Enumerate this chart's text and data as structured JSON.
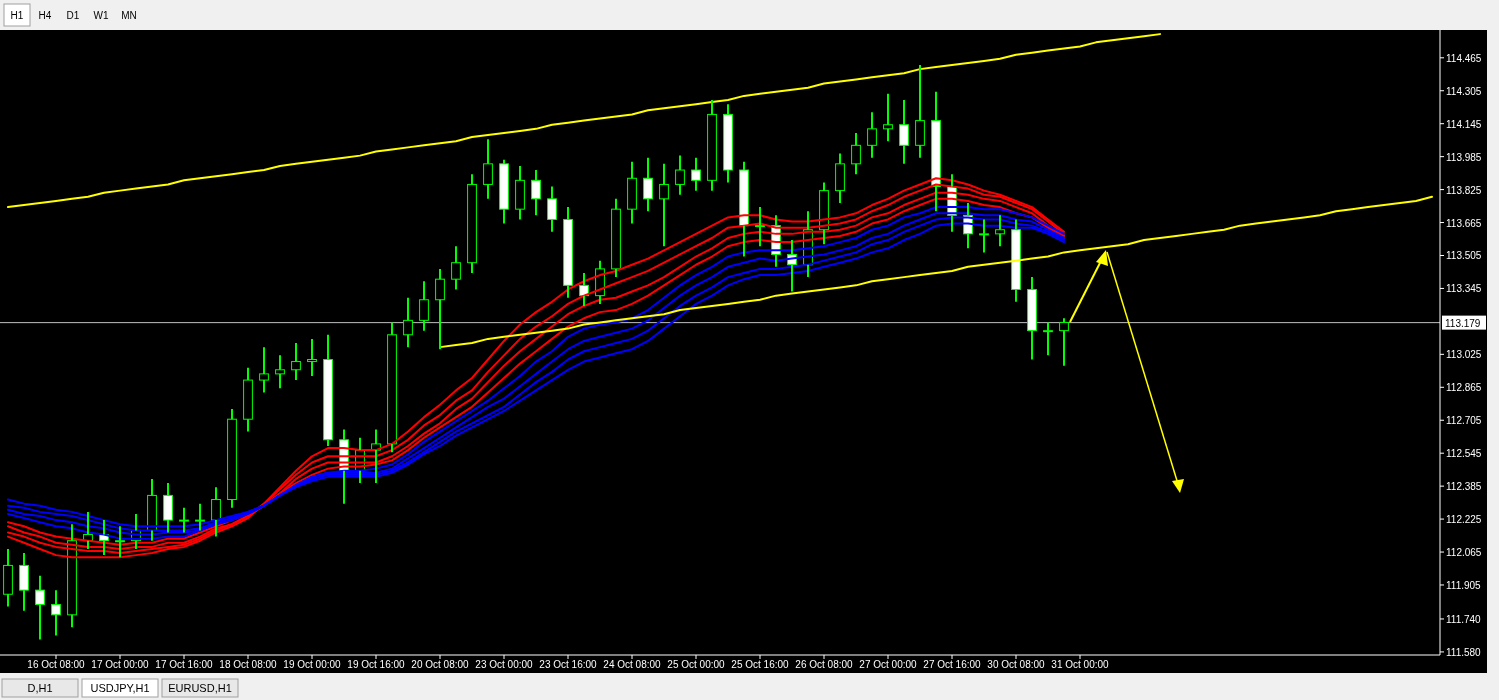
{
  "chart_data": {
    "type": "candlestick",
    "color": "#00ff00",
    "categories": [
      null,
      null,
      null,
      "16 Oct 08:00",
      null,
      null,
      null,
      "17 Oct 00:00",
      null,
      null,
      null,
      "17 Oct 16:00",
      null,
      null,
      null,
      "18 Oct 08:00",
      null,
      null,
      null,
      "19 Oct 00:00",
      null,
      null,
      null,
      "19 Oct 16:00",
      null,
      null,
      null,
      "20 Oct 08:00",
      null,
      null,
      null,
      "23 Oct 00:00",
      null,
      null,
      null,
      "23 Oct 16:00",
      null,
      null,
      null,
      "24 Oct 08:00",
      null,
      null,
      null,
      "25 Oct 00:00",
      null,
      null,
      null,
      "25 Oct 16:00",
      null,
      null,
      null,
      "26 Oct 08:00",
      null,
      null,
      null,
      "27 Oct 00:00",
      null,
      null,
      null,
      "27 Oct 16:00",
      null,
      null,
      null,
      "30 Oct 08:00",
      null,
      null,
      null,
      "31 Oct 00:00",
      null,
      null,
      null,
      null,
      null,
      null,
      null,
      null,
      null,
      null,
      null,
      null,
      null,
      null,
      null,
      null,
      null,
      null,
      null,
      null,
      null,
      null
    ],
    "ohlc": [
      [
        111.86,
        112.08,
        111.8,
        112.0
      ],
      [
        112.0,
        112.06,
        111.78,
        111.88
      ],
      [
        111.88,
        111.95,
        111.64,
        111.81
      ],
      [
        111.81,
        111.88,
        111.66,
        111.76
      ],
      [
        111.76,
        112.2,
        111.7,
        112.12
      ],
      [
        112.12,
        112.26,
        112.08,
        112.15
      ],
      [
        112.15,
        112.22,
        112.05,
        112.12
      ],
      [
        112.12,
        112.19,
        112.04,
        112.12
      ],
      [
        112.12,
        112.25,
        112.08,
        112.17
      ],
      [
        112.17,
        112.42,
        112.12,
        112.34
      ],
      [
        112.34,
        112.4,
        112.16,
        112.22
      ],
      [
        112.22,
        112.28,
        112.16,
        112.22
      ],
      [
        112.22,
        112.3,
        112.17,
        112.22
      ],
      [
        112.22,
        112.38,
        112.14,
        112.32
      ],
      [
        112.32,
        112.76,
        112.28,
        112.71
      ],
      [
        112.71,
        112.96,
        112.65,
        112.9
      ],
      [
        112.9,
        113.06,
        112.84,
        112.93
      ],
      [
        112.93,
        113.02,
        112.86,
        112.95
      ],
      [
        112.95,
        113.08,
        112.9,
        112.99
      ],
      [
        112.99,
        113.1,
        112.92,
        113.0
      ],
      [
        113.0,
        113.12,
        112.58,
        112.61
      ],
      [
        112.61,
        112.66,
        112.3,
        112.46
      ],
      [
        112.46,
        112.62,
        112.4,
        112.56
      ],
      [
        112.56,
        112.66,
        112.4,
        112.59
      ],
      [
        112.59,
        113.18,
        112.55,
        113.12
      ],
      [
        113.12,
        113.3,
        113.06,
        113.19
      ],
      [
        113.19,
        113.38,
        113.14,
        113.29
      ],
      [
        113.29,
        113.44,
        113.05,
        113.39
      ],
      [
        113.39,
        113.55,
        113.34,
        113.47
      ],
      [
        113.47,
        113.9,
        113.42,
        113.85
      ],
      [
        113.85,
        114.07,
        113.78,
        113.95
      ],
      [
        113.95,
        113.97,
        113.66,
        113.73
      ],
      [
        113.73,
        113.94,
        113.68,
        113.87
      ],
      [
        113.87,
        113.92,
        113.7,
        113.78
      ],
      [
        113.78,
        113.84,
        113.62,
        113.68
      ],
      [
        113.68,
        113.74,
        113.3,
        113.36
      ],
      [
        113.36,
        113.42,
        113.26,
        113.31
      ],
      [
        113.31,
        113.48,
        113.27,
        113.44
      ],
      [
        113.44,
        113.78,
        113.4,
        113.73
      ],
      [
        113.73,
        113.96,
        113.66,
        113.88
      ],
      [
        113.88,
        113.98,
        113.72,
        113.78
      ],
      [
        113.78,
        113.95,
        113.55,
        113.85
      ],
      [
        113.85,
        113.99,
        113.8,
        113.92
      ],
      [
        113.92,
        113.98,
        113.82,
        113.87
      ],
      [
        113.87,
        114.26,
        113.82,
        114.19
      ],
      [
        114.19,
        114.24,
        113.86,
        113.92
      ],
      [
        113.92,
        113.96,
        113.5,
        113.65
      ],
      [
        113.65,
        113.74,
        113.55,
        113.65
      ],
      [
        113.65,
        113.7,
        113.45,
        113.51
      ],
      [
        113.51,
        113.58,
        113.33,
        113.46
      ],
      [
        113.46,
        113.72,
        113.4,
        113.63
      ],
      [
        113.63,
        113.86,
        113.56,
        113.82
      ],
      [
        113.82,
        114.0,
        113.76,
        113.95
      ],
      [
        113.95,
        114.1,
        113.9,
        114.04
      ],
      [
        114.04,
        114.2,
        113.98,
        114.12
      ],
      [
        114.12,
        114.29,
        114.06,
        114.14
      ],
      [
        114.14,
        114.26,
        113.95,
        114.04
      ],
      [
        114.04,
        114.43,
        113.98,
        114.16
      ],
      [
        114.16,
        114.3,
        113.72,
        113.84
      ],
      [
        113.84,
        113.9,
        113.62,
        113.7
      ],
      [
        113.7,
        113.76,
        113.54,
        113.61
      ],
      [
        113.61,
        113.68,
        113.52,
        113.61
      ],
      [
        113.61,
        113.7,
        113.55,
        113.63
      ],
      [
        113.63,
        113.68,
        113.28,
        113.34
      ],
      [
        113.34,
        113.4,
        113.0,
        113.14
      ],
      [
        113.14,
        113.18,
        113.02,
        113.14
      ],
      [
        113.14,
        113.2,
        112.97,
        113.18
      ],
      null,
      null,
      null,
      null,
      null,
      null,
      null,
      null,
      null,
      null,
      null,
      null,
      null,
      null,
      null,
      null,
      null,
      null,
      null,
      null,
      null,
      null,
      null
    ],
    "series": [
      {
        "type": "line",
        "color": "#ff0000",
        "values": [
          112.14,
          112.11,
          112.08,
          112.05,
          112.04,
          112.04,
          112.04,
          112.04,
          112.05,
          112.06,
          112.08,
          112.09,
          112.12,
          112.16,
          112.19,
          112.23,
          112.3,
          112.38,
          112.46,
          112.53,
          112.57,
          112.57,
          112.56,
          112.56,
          112.59,
          112.65,
          112.72,
          112.78,
          112.85,
          112.91,
          113.0,
          113.09,
          113.17,
          113.23,
          113.28,
          113.34,
          113.38,
          113.41,
          113.43,
          113.46,
          113.49,
          113.53,
          113.57,
          113.61,
          113.65,
          113.69,
          113.7,
          113.7,
          113.68,
          113.67,
          113.67,
          113.68,
          113.69,
          113.71,
          113.75,
          113.78,
          113.82,
          113.85,
          113.88,
          113.87,
          113.85,
          113.82,
          113.8,
          113.77,
          113.74,
          113.68,
          113.62,
          null,
          null,
          null,
          null,
          null,
          null,
          null,
          null,
          null,
          null,
          null,
          null,
          null,
          null,
          null,
          null,
          null,
          null,
          null,
          null,
          null,
          null,
          null
        ]
      },
      {
        "type": "line",
        "color": "#ff0000",
        "values": [
          112.16,
          112.14,
          112.11,
          112.09,
          112.08,
          112.07,
          112.07,
          112.06,
          112.07,
          112.08,
          112.09,
          112.1,
          112.13,
          112.17,
          112.2,
          112.24,
          112.3,
          112.37,
          112.44,
          112.5,
          112.53,
          112.53,
          112.53,
          112.53,
          112.56,
          112.61,
          112.68,
          112.73,
          112.8,
          112.85,
          112.94,
          113.02,
          113.1,
          113.16,
          113.21,
          113.27,
          113.31,
          113.34,
          113.37,
          113.4,
          113.43,
          113.47,
          113.51,
          113.55,
          113.59,
          113.64,
          113.65,
          113.66,
          113.64,
          113.64,
          113.64,
          113.65,
          113.66,
          113.68,
          113.72,
          113.75,
          113.79,
          113.82,
          113.85,
          113.84,
          113.83,
          113.8,
          113.79,
          113.76,
          113.73,
          113.67,
          113.61,
          null,
          null,
          null,
          null,
          null,
          null,
          null,
          null,
          null,
          null,
          null,
          null,
          null,
          null,
          null,
          null,
          null,
          null,
          null,
          null,
          null,
          null,
          null
        ]
      },
      {
        "type": "line",
        "color": "#ff0000",
        "values": [
          112.19,
          112.16,
          112.14,
          112.11,
          112.1,
          112.09,
          112.09,
          112.08,
          112.09,
          112.09,
          112.11,
          112.11,
          112.14,
          112.18,
          112.2,
          112.24,
          112.29,
          112.35,
          112.42,
          112.47,
          112.5,
          112.5,
          112.5,
          112.5,
          112.53,
          112.58,
          112.64,
          112.69,
          112.76,
          112.81,
          112.89,
          112.97,
          113.04,
          113.1,
          113.16,
          113.22,
          113.26,
          113.29,
          113.3,
          113.33,
          113.36,
          113.4,
          113.45,
          113.5,
          113.54,
          113.59,
          113.61,
          113.62,
          113.61,
          113.61,
          113.62,
          113.62,
          113.63,
          113.65,
          113.69,
          113.71,
          113.75,
          113.78,
          113.81,
          113.81,
          113.8,
          113.78,
          113.77,
          113.74,
          113.71,
          113.65,
          113.6,
          null,
          null,
          null,
          null,
          null,
          null,
          null,
          null,
          null,
          null,
          null,
          null,
          null,
          null,
          null,
          null,
          null,
          null,
          null,
          null,
          null,
          null,
          null
        ]
      },
      {
        "type": "line",
        "color": "#ff0000",
        "values": [
          112.21,
          112.19,
          112.16,
          112.14,
          112.13,
          112.12,
          112.11,
          112.1,
          112.11,
          112.11,
          112.13,
          112.13,
          112.16,
          112.19,
          112.22,
          112.25,
          112.29,
          112.35,
          112.4,
          112.44,
          112.47,
          112.48,
          112.48,
          112.49,
          112.51,
          112.56,
          112.62,
          112.67,
          112.72,
          112.77,
          112.84,
          112.91,
          112.98,
          113.04,
          113.1,
          113.16,
          113.2,
          113.23,
          113.24,
          113.27,
          113.31,
          113.36,
          113.41,
          113.46,
          113.5,
          113.55,
          113.57,
          113.58,
          113.57,
          113.57,
          113.58,
          113.59,
          113.6,
          113.62,
          113.66,
          113.68,
          113.72,
          113.75,
          113.78,
          113.78,
          113.77,
          113.75,
          113.74,
          113.71,
          113.69,
          113.64,
          113.59,
          null,
          null,
          null,
          null,
          null,
          null,
          null,
          null,
          null,
          null,
          null,
          null,
          null,
          null,
          null,
          null,
          null,
          null,
          null,
          null,
          null,
          null,
          null
        ]
      },
      {
        "type": "line",
        "color": "#0000ff",
        "values": [
          112.25,
          112.23,
          112.21,
          112.19,
          112.18,
          112.16,
          112.15,
          112.13,
          112.13,
          112.13,
          112.14,
          112.14,
          112.17,
          112.2,
          112.22,
          112.25,
          112.29,
          112.34,
          112.39,
          112.43,
          112.45,
          112.46,
          112.46,
          112.47,
          112.49,
          112.54,
          112.6,
          112.65,
          112.7,
          112.75,
          112.8,
          112.86,
          112.92,
          112.99,
          113.04,
          113.11,
          113.15,
          113.17,
          113.18,
          113.2,
          113.24,
          113.3,
          113.36,
          113.41,
          113.45,
          113.5,
          113.52,
          113.53,
          113.53,
          113.53,
          113.54,
          113.55,
          113.57,
          113.59,
          113.63,
          113.65,
          113.69,
          113.71,
          113.74,
          113.74,
          113.74,
          113.73,
          113.73,
          113.71,
          113.69,
          113.65,
          113.61,
          null,
          null,
          null,
          null,
          null,
          null,
          null,
          null,
          null,
          null,
          null,
          null,
          null,
          null,
          null,
          null,
          null,
          null,
          null,
          null,
          null,
          null,
          null
        ]
      },
      {
        "type": "line",
        "color": "#0000ff",
        "values": [
          112.27,
          112.25,
          112.24,
          112.22,
          112.21,
          112.19,
          112.18,
          112.16,
          112.15,
          112.15,
          112.16,
          112.16,
          112.17,
          112.2,
          112.22,
          112.25,
          112.29,
          112.34,
          112.39,
          112.43,
          112.45,
          112.45,
          112.45,
          112.45,
          112.47,
          112.52,
          112.57,
          112.62,
          112.67,
          112.72,
          112.77,
          112.81,
          112.87,
          112.93,
          112.99,
          113.05,
          113.09,
          113.11,
          113.13,
          113.15,
          113.19,
          113.25,
          113.31,
          113.36,
          113.4,
          113.45,
          113.47,
          113.49,
          113.48,
          113.49,
          113.5,
          113.51,
          113.53,
          113.55,
          113.59,
          113.61,
          113.65,
          113.68,
          113.71,
          113.71,
          113.71,
          113.7,
          113.7,
          113.68,
          113.67,
          113.63,
          113.59,
          null,
          null,
          null,
          null,
          null,
          null,
          null,
          null,
          null,
          null,
          null,
          null,
          null,
          null,
          null,
          null,
          null,
          null,
          null,
          null,
          null,
          null,
          null
        ]
      },
      {
        "type": "line",
        "color": "#0000ff",
        "values": [
          112.29,
          112.28,
          112.26,
          112.25,
          112.24,
          112.22,
          112.2,
          112.18,
          112.17,
          112.17,
          112.17,
          112.17,
          112.18,
          112.21,
          112.23,
          112.26,
          112.29,
          112.34,
          112.38,
          112.42,
          112.44,
          112.44,
          112.44,
          112.44,
          112.46,
          112.5,
          112.55,
          112.6,
          112.65,
          112.69,
          112.73,
          112.77,
          112.83,
          112.89,
          112.94,
          113.0,
          113.04,
          113.06,
          113.08,
          113.1,
          113.14,
          113.2,
          113.26,
          113.31,
          113.35,
          113.4,
          113.42,
          113.44,
          113.44,
          113.45,
          113.46,
          113.48,
          113.5,
          113.52,
          113.56,
          113.58,
          113.62,
          113.65,
          113.68,
          113.69,
          113.69,
          113.68,
          113.68,
          113.66,
          113.65,
          113.62,
          113.58,
          null,
          null,
          null,
          null,
          null,
          null,
          null,
          null,
          null,
          null,
          null,
          null,
          null,
          null,
          null,
          null,
          null,
          null,
          null,
          null,
          null,
          null,
          null
        ]
      },
      {
        "type": "line",
        "color": "#0000ff",
        "values": [
          112.32,
          112.3,
          112.29,
          112.27,
          112.26,
          112.24,
          112.22,
          112.2,
          112.19,
          112.19,
          112.19,
          112.19,
          112.2,
          112.22,
          112.24,
          112.26,
          112.29,
          112.34,
          112.38,
          112.41,
          112.43,
          112.43,
          112.43,
          112.43,
          112.45,
          112.49,
          112.54,
          112.58,
          112.63,
          112.67,
          112.71,
          112.75,
          112.8,
          112.85,
          112.9,
          112.95,
          112.99,
          113.01,
          113.03,
          113.05,
          113.09,
          113.15,
          113.21,
          113.27,
          113.31,
          113.36,
          113.39,
          113.41,
          113.41,
          113.42,
          113.43,
          113.45,
          113.47,
          113.49,
          113.52,
          113.54,
          113.58,
          113.61,
          113.65,
          113.66,
          113.66,
          113.65,
          113.65,
          113.64,
          113.64,
          113.61,
          113.57,
          null,
          null,
          null,
          null,
          null,
          null,
          null,
          null,
          null,
          null,
          null,
          null,
          null,
          null,
          null,
          null,
          null,
          null,
          null,
          null,
          null,
          null,
          null
        ]
      },
      {
        "type": "line",
        "color": "#ffff00",
        "values": [
          113.74,
          113.75,
          113.76,
          113.77,
          113.78,
          113.79,
          113.81,
          113.82,
          113.83,
          113.84,
          113.85,
          113.87,
          113.88,
          113.89,
          113.9,
          113.91,
          113.92,
          113.94,
          113.95,
          113.96,
          113.97,
          113.98,
          113.99,
          114.01,
          114.02,
          114.03,
          114.04,
          114.05,
          114.06,
          114.08,
          114.09,
          114.1,
          114.11,
          114.12,
          114.14,
          114.15,
          114.16,
          114.17,
          114.18,
          114.19,
          114.21,
          114.22,
          114.23,
          114.24,
          114.25,
          114.26,
          114.28,
          114.29,
          114.3,
          114.31,
          114.32,
          114.34,
          114.35,
          114.36,
          114.37,
          114.38,
          114.39,
          114.41,
          114.42,
          114.43,
          114.44,
          114.45,
          114.46,
          114.48,
          114.49,
          114.5,
          114.51,
          114.52,
          114.54,
          114.55,
          114.56,
          114.57,
          114.58,
          null,
          null,
          null,
          null,
          null,
          null,
          null,
          null,
          null,
          null,
          null,
          null,
          null,
          null,
          null,
          null,
          null
        ]
      },
      {
        "type": "line",
        "color": "#ffff00",
        "values": [
          null,
          null,
          null,
          null,
          null,
          null,
          null,
          null,
          null,
          null,
          null,
          null,
          null,
          null,
          null,
          null,
          null,
          null,
          null,
          null,
          null,
          null,
          null,
          null,
          null,
          null,
          null,
          113.06,
          113.07,
          113.08,
          113.1,
          113.11,
          113.12,
          113.13,
          113.14,
          113.15,
          113.17,
          113.18,
          113.19,
          113.2,
          113.21,
          113.22,
          113.24,
          113.25,
          113.26,
          113.27,
          113.28,
          113.29,
          113.31,
          113.32,
          113.33,
          113.34,
          113.35,
          113.36,
          113.38,
          113.39,
          113.4,
          113.41,
          113.42,
          113.43,
          113.45,
          113.46,
          113.47,
          113.48,
          113.49,
          113.5,
          113.52,
          113.53,
          113.54,
          113.55,
          113.56,
          113.58,
          113.59,
          113.6,
          113.61,
          113.62,
          113.63,
          113.65,
          113.66,
          113.67,
          113.68,
          113.69,
          113.7,
          113.72,
          113.73,
          113.74,
          113.75,
          113.76,
          113.77,
          113.79
        ]
      }
    ],
    "ylim": [
      111.565,
      114.6
    ],
    "yticks": [
      {
        "value": 111.58,
        "label": "111.580"
      },
      {
        "value": 111.74,
        "label": "111.740"
      },
      111.905,
      112.065,
      112.225,
      112.385,
      112.545,
      112.705,
      112.865,
      113.025,
      113.345,
      113.505,
      113.665,
      113.825,
      113.985,
      114.145,
      114.305,
      114.465
    ],
    "ref_lines": [
      {
        "axis": "y",
        "value": 113.179,
        "label": "113.179",
        "color": "#c0c0c0"
      }
    ],
    "annotations": [
      "H1",
      "H4",
      "D1",
      "W1",
      "MN",
      "D,H1",
      "USDJPY,H1",
      "EURUSD,H1"
    ]
  }
}
